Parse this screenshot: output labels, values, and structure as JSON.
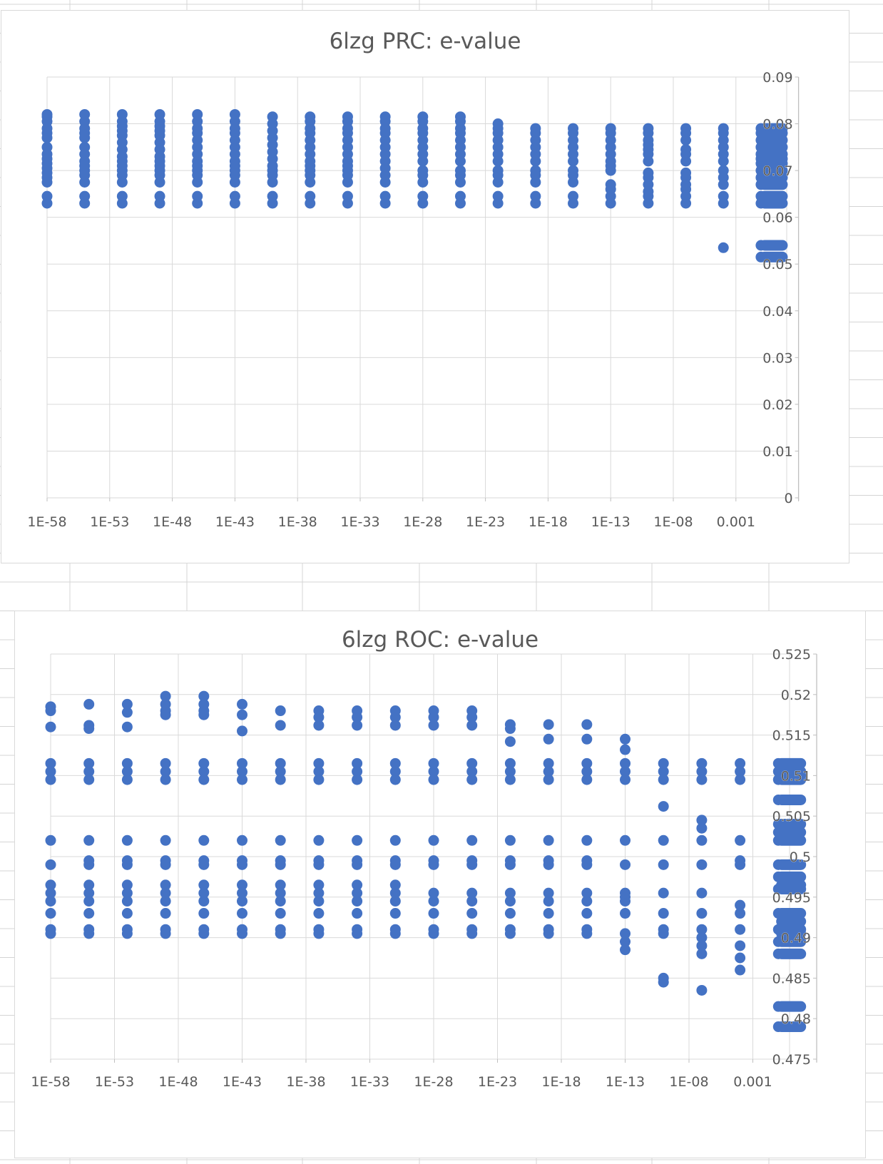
{
  "colors": {
    "marker": "#4472c4",
    "gridline": "#d9d9d9",
    "axis": "#bfbfbf",
    "text": "#595959",
    "sheet_line": "#d4d4d4"
  },
  "chart_data": [
    {
      "type": "scatter",
      "title": "6lzg PRC: e-value",
      "xlabel": "",
      "ylabel": "",
      "x_scale": "log",
      "x_ticks": [
        "1E-58",
        "1E-53",
        "1E-48",
        "1E-43",
        "1E-38",
        "1E-33",
        "1E-28",
        "1E-23",
        "1E-18",
        "1E-13",
        "1E-08",
        "0.001"
      ],
      "y_ticks": [
        "0",
        "0.01",
        "0.02",
        "0.03",
        "0.04",
        "0.05",
        "0.06",
        "0.07",
        "0.08",
        "0.09"
      ],
      "ylim": [
        0,
        0.09
      ],
      "grid": true,
      "legend": "none",
      "columns": [
        {
          "x": "1E-58",
          "y": [
            0.063,
            0.0645,
            0.0675,
            0.0685,
            0.0695,
            0.0705,
            0.0715,
            0.0725,
            0.0735,
            0.075,
            0.077,
            0.078,
            0.079,
            0.0805,
            0.0815,
            0.082
          ]
        },
        {
          "x": "1E-55",
          "y": [
            0.063,
            0.0645,
            0.0675,
            0.069,
            0.07,
            0.071,
            0.072,
            0.0735,
            0.075,
            0.077,
            0.078,
            0.079,
            0.0805,
            0.082
          ]
        },
        {
          "x": "1E-52",
          "y": [
            0.063,
            0.0645,
            0.0675,
            0.069,
            0.07,
            0.071,
            0.072,
            0.073,
            0.0745,
            0.076,
            0.0775,
            0.0785,
            0.0795,
            0.0805,
            0.082
          ]
        },
        {
          "x": "1E-49",
          "y": [
            0.063,
            0.0645,
            0.0675,
            0.069,
            0.07,
            0.071,
            0.072,
            0.073,
            0.0745,
            0.076,
            0.0775,
            0.0785,
            0.0795,
            0.0805,
            0.082
          ]
        },
        {
          "x": "1E-46",
          "y": [
            0.063,
            0.0645,
            0.0675,
            0.069,
            0.07,
            0.071,
            0.072,
            0.0735,
            0.075,
            0.0765,
            0.078,
            0.079,
            0.0805,
            0.082
          ]
        },
        {
          "x": "1E-43",
          "y": [
            0.063,
            0.0645,
            0.0675,
            0.069,
            0.07,
            0.071,
            0.072,
            0.0735,
            0.075,
            0.0765,
            0.078,
            0.079,
            0.0805,
            0.082
          ]
        },
        {
          "x": "1E-40",
          "y": [
            0.063,
            0.0645,
            0.0675,
            0.069,
            0.07,
            0.071,
            0.0725,
            0.074,
            0.0755,
            0.077,
            0.0785,
            0.08,
            0.0815
          ]
        },
        {
          "x": "1E-37",
          "y": [
            0.063,
            0.0645,
            0.0675,
            0.069,
            0.07,
            0.071,
            0.072,
            0.0735,
            0.075,
            0.0765,
            0.078,
            0.079,
            0.0805,
            0.0815
          ]
        },
        {
          "x": "1E-34",
          "y": [
            0.063,
            0.0645,
            0.0675,
            0.069,
            0.07,
            0.071,
            0.072,
            0.0735,
            0.075,
            0.0765,
            0.078,
            0.079,
            0.0805,
            0.0815
          ]
        },
        {
          "x": "1E-31",
          "y": [
            0.063,
            0.0645,
            0.0675,
            0.069,
            0.0705,
            0.072,
            0.0735,
            0.075,
            0.0765,
            0.078,
            0.079,
            0.0805,
            0.0815
          ]
        },
        {
          "x": "1E-28",
          "y": [
            0.063,
            0.0645,
            0.0675,
            0.069,
            0.07,
            0.072,
            0.0735,
            0.075,
            0.0765,
            0.078,
            0.079,
            0.0805,
            0.0815
          ]
        },
        {
          "x": "1E-25",
          "y": [
            0.063,
            0.0645,
            0.0675,
            0.069,
            0.07,
            0.072,
            0.0735,
            0.075,
            0.0765,
            0.078,
            0.079,
            0.0805,
            0.0815
          ]
        },
        {
          "x": "1E-22",
          "y": [
            0.063,
            0.0645,
            0.0675,
            0.069,
            0.07,
            0.072,
            0.0735,
            0.075,
            0.0765,
            0.078,
            0.079,
            0.08
          ]
        },
        {
          "x": "1E-19",
          "y": [
            0.063,
            0.0645,
            0.0675,
            0.069,
            0.07,
            0.072,
            0.0735,
            0.075,
            0.0765,
            0.078,
            0.079
          ]
        },
        {
          "x": "1E-16",
          "y": [
            0.063,
            0.0645,
            0.0675,
            0.069,
            0.07,
            0.072,
            0.0735,
            0.075,
            0.0765,
            0.078,
            0.079
          ]
        },
        {
          "x": "1E-13",
          "y": [
            0.063,
            0.0645,
            0.066,
            0.067,
            0.07,
            0.071,
            0.072,
            0.0735,
            0.075,
            0.0765,
            0.078,
            0.079
          ]
        },
        {
          "x": "1E-10",
          "y": [
            0.063,
            0.0645,
            0.0655,
            0.067,
            0.0685,
            0.0695,
            0.072,
            0.0735,
            0.0745,
            0.0755,
            0.0765,
            0.078,
            0.079
          ]
        },
        {
          "x": "1E-07",
          "y": [
            0.063,
            0.0645,
            0.066,
            0.067,
            0.0685,
            0.0695,
            0.072,
            0.0735,
            0.0745,
            0.0765,
            0.078,
            0.079
          ]
        },
        {
          "x": "1E-04",
          "y": [
            0.0535,
            0.063,
            0.0645,
            0.067,
            0.0685,
            0.07,
            0.072,
            0.0735,
            0.075,
            0.0765,
            0.078,
            0.079
          ]
        },
        {
          "x": "0.1",
          "y": [
            0.0515,
            0.054,
            0.063,
            0.0645,
            0.067,
            0.0685,
            0.07,
            0.0715,
            0.0725,
            0.0735,
            0.075,
            0.0765,
            0.078,
            0.079
          ]
        },
        {
          "x": "1",
          "y": [
            0.0515,
            0.054,
            0.063,
            0.0645,
            0.067,
            0.0685,
            0.07,
            0.0715,
            0.0725,
            0.0735,
            0.075,
            0.0765,
            0.078,
            0.079
          ]
        }
      ]
    },
    {
      "type": "scatter",
      "title": "6lzg ROC: e-value",
      "xlabel": "",
      "ylabel": "",
      "x_scale": "log",
      "x_ticks": [
        "1E-58",
        "1E-53",
        "1E-48",
        "1E-43",
        "1E-38",
        "1E-33",
        "1E-28",
        "1E-23",
        "1E-18",
        "1E-13",
        "1E-08",
        "0.001"
      ],
      "y_ticks": [
        "0.475",
        "0.48",
        "0.485",
        "0.49",
        "0.495",
        "0.5",
        "0.505",
        "0.51",
        "0.515",
        "0.52",
        "0.525"
      ],
      "ylim": [
        0.475,
        0.525
      ],
      "grid": true,
      "legend": "none",
      "columns": [
        {
          "x": "1E-58",
          "y": [
            0.4905,
            0.491,
            0.493,
            0.4945,
            0.4955,
            0.4965,
            0.499,
            0.502,
            0.5095,
            0.5105,
            0.5115,
            0.516,
            0.518,
            0.5185
          ]
        },
        {
          "x": "1E-55",
          "y": [
            0.4905,
            0.491,
            0.493,
            0.4945,
            0.4955,
            0.4965,
            0.499,
            0.4995,
            0.502,
            0.5095,
            0.5105,
            0.5115,
            0.5158,
            0.5162,
            0.5188
          ]
        },
        {
          "x": "1E-52",
          "y": [
            0.4905,
            0.491,
            0.493,
            0.4945,
            0.4955,
            0.4965,
            0.499,
            0.4995,
            0.502,
            0.5095,
            0.5105,
            0.5115,
            0.516,
            0.5178,
            0.5188
          ]
        },
        {
          "x": "1E-49",
          "y": [
            0.4905,
            0.491,
            0.493,
            0.4945,
            0.4955,
            0.4965,
            0.499,
            0.4995,
            0.502,
            0.5095,
            0.5105,
            0.5115,
            0.5175,
            0.518,
            0.5188,
            0.5198
          ]
        },
        {
          "x": "1E-46",
          "y": [
            0.4905,
            0.491,
            0.493,
            0.4945,
            0.4955,
            0.4965,
            0.499,
            0.4995,
            0.502,
            0.5095,
            0.5105,
            0.5115,
            0.5175,
            0.518,
            0.5188,
            0.5198
          ]
        },
        {
          "x": "1E-43",
          "y": [
            0.4905,
            0.491,
            0.493,
            0.4945,
            0.4955,
            0.4965,
            0.499,
            0.4995,
            0.502,
            0.5095,
            0.5105,
            0.5115,
            0.5155,
            0.5175,
            0.5188
          ]
        },
        {
          "x": "1E-40",
          "y": [
            0.4905,
            0.491,
            0.493,
            0.4945,
            0.4955,
            0.4965,
            0.499,
            0.4995,
            0.502,
            0.5095,
            0.5105,
            0.5115,
            0.5162,
            0.518
          ]
        },
        {
          "x": "1E-37",
          "y": [
            0.4905,
            0.491,
            0.493,
            0.4945,
            0.4955,
            0.4965,
            0.499,
            0.4995,
            0.502,
            0.5095,
            0.5105,
            0.5115,
            0.5162,
            0.5172,
            0.518
          ]
        },
        {
          "x": "1E-34",
          "y": [
            0.4905,
            0.491,
            0.493,
            0.4945,
            0.4955,
            0.4965,
            0.499,
            0.4995,
            0.502,
            0.5095,
            0.5105,
            0.5115,
            0.5162,
            0.5172,
            0.518
          ]
        },
        {
          "x": "1E-31",
          "y": [
            0.4905,
            0.491,
            0.493,
            0.4945,
            0.4955,
            0.4965,
            0.499,
            0.4995,
            0.502,
            0.5095,
            0.5105,
            0.5115,
            0.5162,
            0.5172,
            0.518
          ]
        },
        {
          "x": "1E-28",
          "y": [
            0.4905,
            0.491,
            0.493,
            0.4945,
            0.4955,
            0.499,
            0.4995,
            0.502,
            0.5095,
            0.5105,
            0.5115,
            0.5162,
            0.5172,
            0.518
          ]
        },
        {
          "x": "1E-25",
          "y": [
            0.4905,
            0.491,
            0.493,
            0.4945,
            0.4955,
            0.499,
            0.4995,
            0.502,
            0.5095,
            0.5105,
            0.5115,
            0.5162,
            0.5172,
            0.518
          ]
        },
        {
          "x": "1E-22",
          "y": [
            0.4905,
            0.491,
            0.493,
            0.4945,
            0.4955,
            0.499,
            0.4995,
            0.502,
            0.5095,
            0.5105,
            0.5115,
            0.5142,
            0.5158,
            0.5163
          ]
        },
        {
          "x": "1E-19",
          "y": [
            0.4905,
            0.491,
            0.493,
            0.4945,
            0.4955,
            0.499,
            0.4995,
            0.502,
            0.5095,
            0.5105,
            0.5115,
            0.5145,
            0.5163
          ]
        },
        {
          "x": "1E-16",
          "y": [
            0.4905,
            0.491,
            0.493,
            0.4945,
            0.4955,
            0.499,
            0.4995,
            0.502,
            0.5095,
            0.5105,
            0.5115,
            0.5145,
            0.5163
          ]
        },
        {
          "x": "1E-13",
          "y": [
            0.4885,
            0.4895,
            0.4905,
            0.493,
            0.4945,
            0.495,
            0.4955,
            0.499,
            0.502,
            0.5095,
            0.5105,
            0.5115,
            0.5132,
            0.5145
          ]
        },
        {
          "x": "1E-10",
          "y": [
            0.4845,
            0.485,
            0.4905,
            0.491,
            0.493,
            0.4955,
            0.499,
            0.502,
            0.5062,
            0.5095,
            0.5105,
            0.5115
          ]
        },
        {
          "x": "1E-07",
          "y": [
            0.4835,
            0.488,
            0.489,
            0.49,
            0.491,
            0.493,
            0.4955,
            0.499,
            0.502,
            0.5035,
            0.5045,
            0.5095,
            0.5105,
            0.5115
          ]
        },
        {
          "x": "1E-04",
          "y": [
            0.486,
            0.4875,
            0.489,
            0.491,
            0.493,
            0.494,
            0.499,
            0.4995,
            0.502,
            0.5095,
            0.5105,
            0.5115
          ]
        },
        {
          "x": "0.1",
          "y": [
            0.479,
            0.4815,
            0.488,
            0.4895,
            0.491,
            0.493,
            0.496,
            0.4975,
            0.499,
            0.502,
            0.503,
            0.504,
            0.507,
            0.5095,
            0.5105,
            0.5115
          ]
        },
        {
          "x": "1",
          "y": [
            0.479,
            0.4815,
            0.488,
            0.4895,
            0.4905,
            0.491,
            0.492,
            0.493,
            0.496,
            0.4965,
            0.4975,
            0.499,
            0.502,
            0.503,
            0.504,
            0.507,
            0.5095,
            0.51,
            0.5105,
            0.5115
          ]
        }
      ]
    }
  ]
}
